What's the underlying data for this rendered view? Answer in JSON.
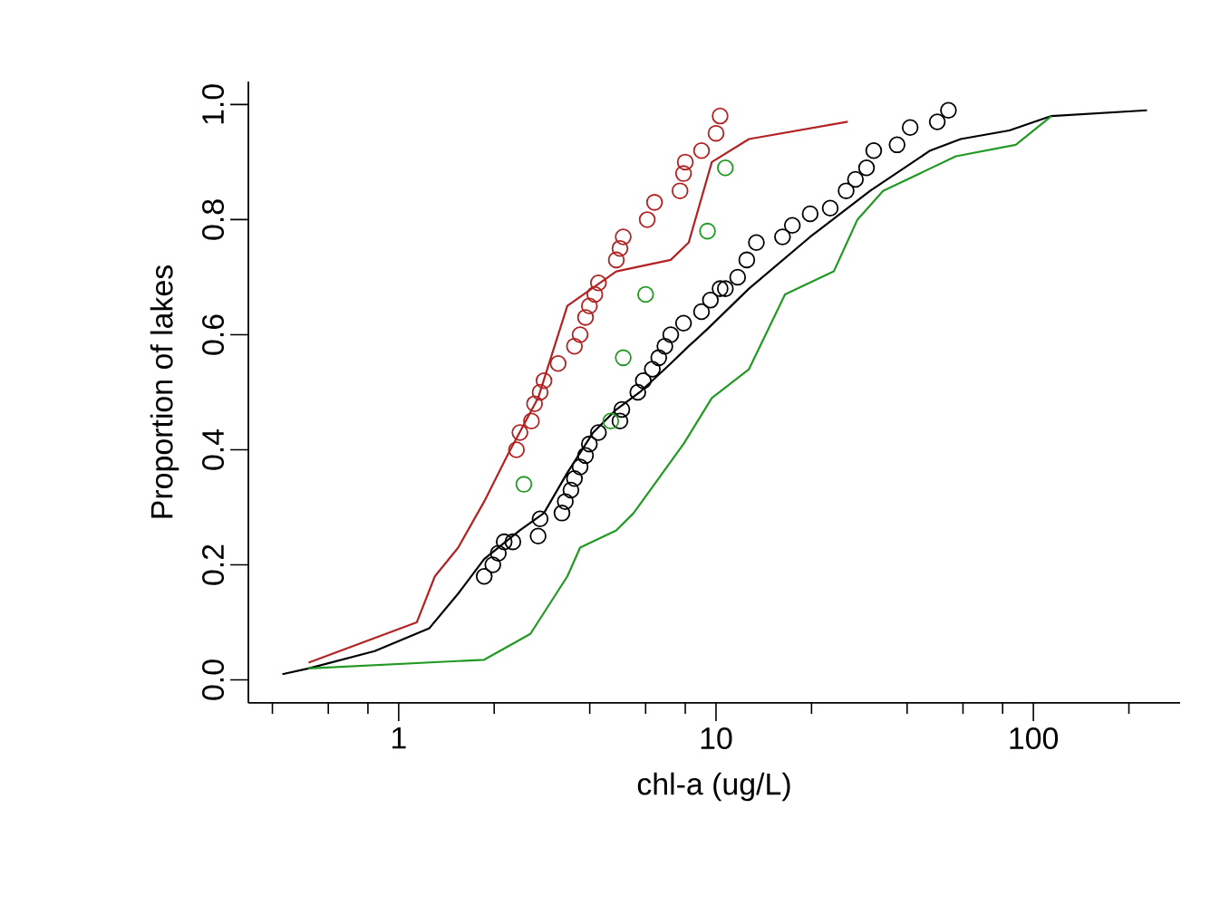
{
  "chart_data": {
    "type": "line",
    "xlabel": "chl-a (ug/L)",
    "ylabel": "Proportion of lakes",
    "log": "x",
    "xlim": [
      0.336,
      290
    ],
    "ylim": [
      -0.04,
      1.04
    ],
    "xticks": [
      {
        "value": 0.4,
        "label": null
      },
      {
        "value": 0.6,
        "label": null
      },
      {
        "value": 0.8,
        "label": null
      },
      1,
      {
        "value": 2,
        "label": null
      },
      {
        "value": 4,
        "label": null
      },
      {
        "value": 6,
        "label": null
      },
      {
        "value": 8,
        "label": null
      },
      10,
      {
        "value": 20,
        "label": null
      },
      {
        "value": 40,
        "label": null
      },
      {
        "value": 60,
        "label": null
      },
      {
        "value": 80,
        "label": null
      },
      100,
      {
        "value": 200,
        "label": null
      }
    ],
    "yticks": [
      {
        "value": 0,
        "label": "0.0"
      },
      {
        "value": 0.2,
        "label": "0.2"
      },
      {
        "value": 0.4,
        "label": "0.4"
      },
      {
        "value": 0.6,
        "label": "0.6"
      },
      {
        "value": 0.8,
        "label": "0.8"
      },
      {
        "value": 1,
        "label": "1.0"
      }
    ],
    "series": [
      {
        "color": "#000000",
        "x": [
          0.43,
          0.52,
          0.84,
          1.25,
          1.54,
          1.86,
          2.41,
          2.87,
          3.4,
          4.1,
          4.85,
          5.75,
          7.2,
          8.2,
          9.4,
          12.7,
          19.8,
          30.6,
          47.3,
          59,
          84,
          114,
          228
        ],
        "values": [
          0.01,
          0.02,
          0.05,
          0.09,
          0.15,
          0.21,
          0.26,
          0.29,
          0.36,
          0.43,
          0.47,
          0.5,
          0.55,
          0.58,
          0.61,
          0.68,
          0.77,
          0.85,
          0.92,
          0.94,
          0.955,
          0.98,
          0.99
        ]
      },
      {
        "color": "#b22222",
        "x": [
          0.52,
          1.14,
          1.3,
          1.54,
          1.86,
          2.2,
          2.75,
          3.4,
          4.85,
          7.2,
          8.2,
          9.7,
          12.7,
          26
        ],
        "values": [
          0.03,
          0.1,
          0.18,
          0.23,
          0.31,
          0.39,
          0.49,
          0.65,
          0.71,
          0.73,
          0.76,
          0.9,
          0.94,
          0.97
        ]
      },
      {
        "color": "#229922",
        "x": [
          0.52,
          1.86,
          2.6,
          3.4,
          3.73,
          4.85,
          5.5,
          7.9,
          9.7,
          12.7,
          16.5,
          23.5,
          27.9,
          33.6,
          57,
          88,
          114
        ],
        "values": [
          0.02,
          0.035,
          0.08,
          0.18,
          0.23,
          0.26,
          0.29,
          0.41,
          0.49,
          0.54,
          0.67,
          0.71,
          0.8,
          0.85,
          0.91,
          0.93,
          0.98
        ]
      },
      {
        "type": "scatter",
        "marker": "circle",
        "color": "#000000",
        "x": [
          1.86,
          1.98,
          2.06,
          2.15,
          2.29,
          2.75,
          2.79,
          3.27,
          3.35,
          3.49,
          3.58,
          3.73,
          3.88,
          3.99,
          4.26,
          4.98,
          5.05,
          5.67,
          5.9,
          6.3,
          6.6,
          6.9,
          7.2,
          7.9,
          9.0,
          9.6,
          10.3,
          10.7,
          11.7,
          12.5,
          13.4,
          16.2,
          17.4,
          19.8,
          22.9,
          25.7,
          27.5,
          29.8,
          31.4,
          37.2,
          40.9,
          49.8,
          54
        ],
        "values": [
          0.18,
          0.2,
          0.22,
          0.24,
          0.24,
          0.25,
          0.28,
          0.29,
          0.31,
          0.33,
          0.35,
          0.37,
          0.39,
          0.41,
          0.43,
          0.45,
          0.47,
          0.5,
          0.52,
          0.54,
          0.56,
          0.58,
          0.6,
          0.62,
          0.64,
          0.66,
          0.68,
          0.68,
          0.7,
          0.73,
          0.76,
          0.77,
          0.79,
          0.81,
          0.82,
          0.85,
          0.87,
          0.89,
          0.92,
          0.93,
          0.96,
          0.97,
          0.99
        ]
      },
      {
        "type": "scatter",
        "marker": "circle",
        "color": "#b22222",
        "x": [
          2.35,
          2.41,
          2.62,
          2.68,
          2.79,
          2.87,
          3.18,
          3.58,
          3.73,
          3.88,
          3.99,
          4.15,
          4.26,
          4.85,
          4.98,
          5.1,
          6.07,
          6.4,
          7.7,
          7.9,
          8.0,
          9.0,
          10.0,
          10.3
        ],
        "values": [
          0.4,
          0.43,
          0.45,
          0.48,
          0.5,
          0.52,
          0.55,
          0.58,
          0.6,
          0.63,
          0.65,
          0.67,
          0.69,
          0.73,
          0.75,
          0.77,
          0.8,
          0.83,
          0.85,
          0.88,
          0.9,
          0.92,
          0.95,
          0.98
        ]
      },
      {
        "type": "scatter",
        "marker": "circle",
        "color": "#229922",
        "x": [
          2.48,
          4.66,
          5.1,
          6.0,
          9.4,
          10.7
        ],
        "values": [
          0.34,
          0.45,
          0.56,
          0.67,
          0.78,
          0.89
        ]
      }
    ]
  }
}
